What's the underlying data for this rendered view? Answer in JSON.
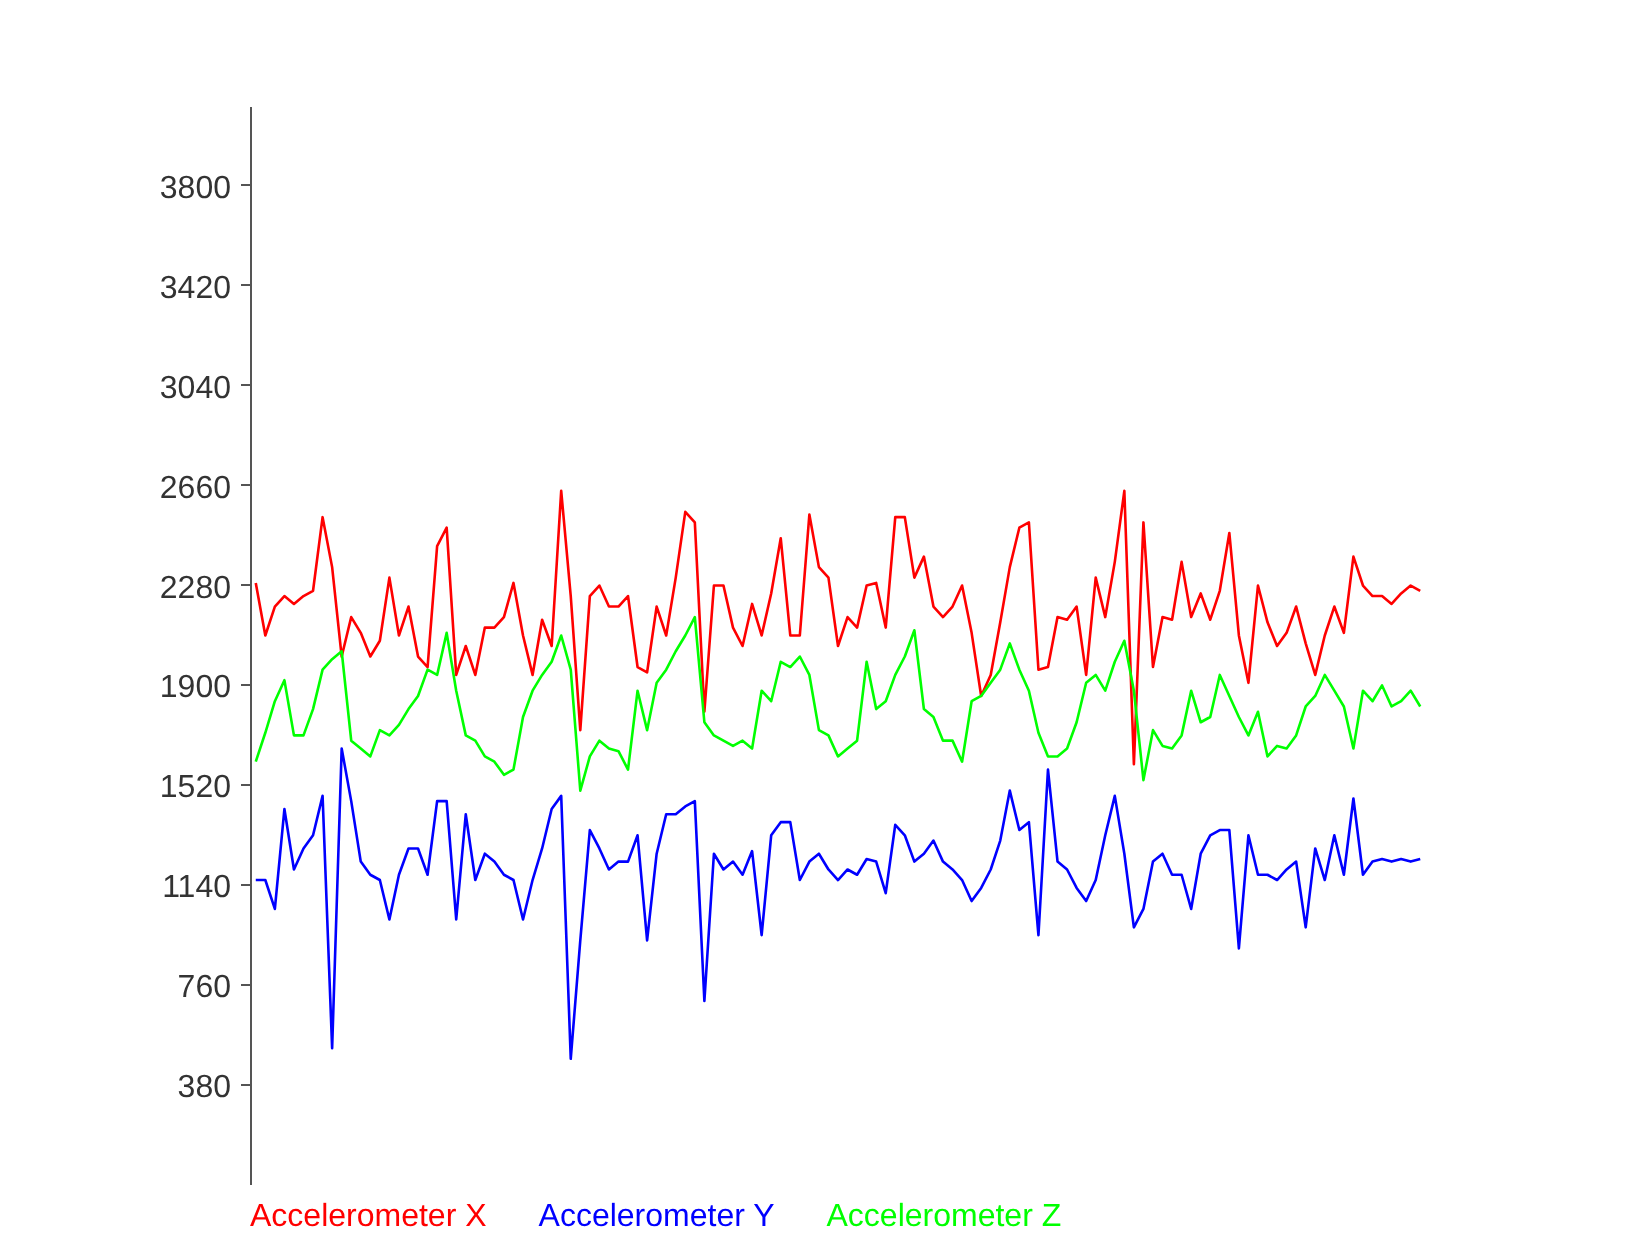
{
  "chart_data": {
    "type": "line",
    "categories": [
      null,
      null,
      null,
      null,
      null,
      null,
      null,
      null,
      null,
      null,
      null,
      null,
      null,
      null,
      null,
      null,
      null,
      null,
      null,
      null,
      null,
      null,
      null,
      null,
      null,
      null,
      null,
      null,
      null,
      null,
      null,
      null,
      null,
      null,
      null,
      null,
      null,
      null,
      null,
      null,
      null,
      null,
      null,
      null,
      null,
      null,
      null,
      null,
      null,
      null,
      null,
      null,
      null,
      null,
      null,
      null,
      null,
      null,
      null,
      null,
      null,
      null,
      null,
      null,
      null,
      null,
      null,
      null,
      null,
      null,
      null,
      null,
      null,
      null,
      null,
      null,
      null,
      null,
      null,
      null,
      null,
      null,
      null,
      null,
      null,
      null,
      null,
      null,
      null,
      null,
      null,
      null,
      null,
      null,
      null,
      null,
      null,
      null,
      null,
      null,
      null,
      null,
      null,
      null,
      null,
      null,
      null,
      null,
      null,
      null,
      null,
      null,
      null,
      null,
      null,
      null,
      null,
      null,
      null,
      null,
      null,
      null,
      null
    ],
    "series": [
      {
        "name": "Accelerometer X",
        "color": "#ff0000",
        "values": [
          2290,
          2090,
          2200,
          2240,
          2210,
          2240,
          2260,
          2540,
          2350,
          2010,
          2160,
          2100,
          2010,
          2070,
          2310,
          2090,
          2200,
          2010,
          1970,
          2430,
          2500,
          1940,
          2050,
          1940,
          2120,
          2120,
          2160,
          2290,
          2090,
          1940,
          2150,
          2050,
          2640,
          2240,
          1730,
          2240,
          2280,
          2200,
          2200,
          2240,
          1970,
          1950,
          2200,
          2090,
          2310,
          2560,
          2520,
          1800,
          2280,
          2280,
          2120,
          2050,
          2210,
          2090,
          2250,
          2460,
          2090,
          2090,
          2550,
          2350,
          2310,
          2050,
          2160,
          2120,
          2280,
          2290,
          2120,
          2540,
          2540,
          2310,
          2390,
          2200,
          2160,
          2200,
          2280,
          2100,
          1860,
          1940,
          2140,
          2350,
          2500,
          2520,
          1960,
          1970,
          2160,
          2150,
          2200,
          1940,
          2310,
          2160,
          2370,
          2640,
          1600,
          2520,
          1970,
          2160,
          2150,
          2370,
          2160,
          2250,
          2150,
          2260,
          2480,
          2090,
          1910,
          2280,
          2140,
          2050,
          2100,
          2200,
          2060,
          1940,
          2090,
          2200,
          2100,
          2390,
          2280,
          2240,
          2240,
          2210,
          2250,
          2280,
          2260
        ]
      },
      {
        "name": "Accelerometer Y",
        "color": "#0000ff",
        "values": [
          1160,
          1160,
          1050,
          1430,
          1200,
          1280,
          1330,
          1480,
          520,
          1660,
          1460,
          1230,
          1180,
          1160,
          1010,
          1180,
          1280,
          1280,
          1180,
          1460,
          1460,
          1010,
          1410,
          1160,
          1260,
          1230,
          1180,
          1160,
          1010,
          1160,
          1280,
          1430,
          1480,
          480,
          930,
          1350,
          1280,
          1200,
          1230,
          1230,
          1330,
          930,
          1260,
          1410,
          1410,
          1440,
          1460,
          700,
          1260,
          1200,
          1230,
          1180,
          1270,
          950,
          1330,
          1380,
          1380,
          1160,
          1230,
          1260,
          1200,
          1160,
          1200,
          1180,
          1240,
          1230,
          1110,
          1370,
          1330,
          1230,
          1260,
          1310,
          1230,
          1200,
          1160,
          1080,
          1130,
          1200,
          1310,
          1500,
          1350,
          1380,
          950,
          1580,
          1230,
          1200,
          1130,
          1080,
          1160,
          1330,
          1480,
          1260,
          980,
          1050,
          1230,
          1260,
          1180,
          1180,
          1050,
          1260,
          1330,
          1350,
          1350,
          900,
          1330,
          1180,
          1180,
          1160,
          1200,
          1230,
          980,
          1280,
          1160,
          1330,
          1180,
          1470,
          1180,
          1230,
          1240,
          1230,
          1240,
          1230,
          1240
        ]
      },
      {
        "name": "Accelerometer Z",
        "color": "#00ff00",
        "values": [
          1610,
          1720,
          1840,
          1920,
          1710,
          1710,
          1810,
          1960,
          2000,
          2030,
          1690,
          1660,
          1630,
          1730,
          1710,
          1750,
          1810,
          1860,
          1960,
          1940,
          2100,
          1880,
          1710,
          1690,
          1630,
          1610,
          1560,
          1580,
          1780,
          1880,
          1940,
          1990,
          2090,
          1960,
          1500,
          1630,
          1690,
          1660,
          1650,
          1580,
          1880,
          1730,
          1910,
          1960,
          2030,
          2090,
          2160,
          1760,
          1710,
          1690,
          1670,
          1690,
          1660,
          1880,
          1840,
          1990,
          1970,
          2010,
          1940,
          1730,
          1710,
          1630,
          1660,
          1690,
          1990,
          1810,
          1840,
          1940,
          2010,
          2110,
          1810,
          1780,
          1690,
          1690,
          1610,
          1840,
          1860,
          1910,
          1960,
          2060,
          1960,
          1880,
          1720,
          1630,
          1630,
          1660,
          1760,
          1910,
          1940,
          1880,
          1990,
          2070,
          1880,
          1540,
          1730,
          1670,
          1660,
          1710,
          1880,
          1760,
          1780,
          1940,
          1860,
          1780,
          1710,
          1800,
          1630,
          1670,
          1660,
          1710,
          1820,
          1860,
          1940,
          1880,
          1820,
          1660,
          1880,
          1840,
          1900,
          1820,
          1840,
          1880,
          1820
        ]
      }
    ],
    "ylim": [
      0,
      4100
    ],
    "yticks": [
      380,
      760,
      1140,
      1520,
      1900,
      2280,
      2660,
      3040,
      3420,
      3800
    ],
    "tick_labels": "y",
    "grid": false,
    "legend": "bottom",
    "marker": "none",
    "line_style": "solid"
  }
}
